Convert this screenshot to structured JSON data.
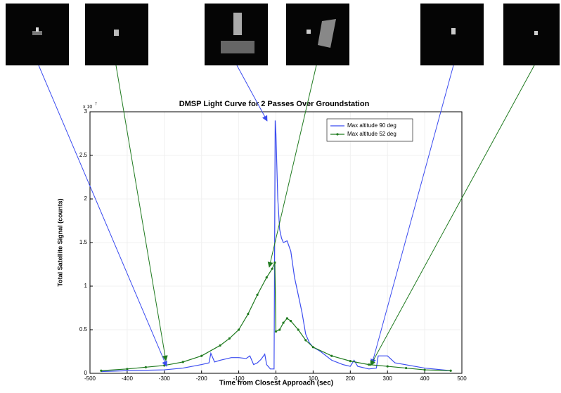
{
  "chart_data": {
    "type": "line",
    "title": "DMSP Light Curve for 2 Passes Over Groundstation",
    "x_label": "Time from Closest Approach (sec)",
    "y_label": "Total Satellite Signal (counts)",
    "y_multiplier": {
      "base": "x 10",
      "exponent": "7"
    },
    "xlim": [
      -500,
      500
    ],
    "xticks": [
      -500,
      -400,
      -300,
      -200,
      -100,
      0,
      100,
      200,
      300,
      400,
      500
    ],
    "ylim": [
      0,
      3
    ],
    "yticks": [
      0,
      0.5,
      1,
      1.5,
      2,
      2.5,
      3
    ],
    "grid": true,
    "legend": "upper right",
    "series": [
      {
        "name": "Max altitude 90 deg",
        "color": "#3b4cf0",
        "marker": false,
        "x": [
          -470,
          -400,
          -300,
          -250,
          -200,
          -180,
          -175,
          -165,
          -150,
          -120,
          -100,
          -80,
          -70,
          -60,
          -50,
          -40,
          -30,
          -25,
          -15,
          -5,
          -2,
          0,
          5,
          10,
          15,
          20,
          30,
          40,
          50,
          60,
          70,
          80,
          90,
          100,
          120,
          150,
          180,
          200,
          210,
          220,
          250,
          270,
          275,
          300,
          320,
          400,
          470
        ],
        "values": [
          0.02,
          0.03,
          0.04,
          0.06,
          0.1,
          0.12,
          0.23,
          0.13,
          0.15,
          0.18,
          0.18,
          0.17,
          0.2,
          0.1,
          0.12,
          0.16,
          0.22,
          0.1,
          0.05,
          0.05,
          2.9,
          2.75,
          2.0,
          1.65,
          1.55,
          1.5,
          1.52,
          1.4,
          1.1,
          0.9,
          0.7,
          0.45,
          0.35,
          0.3,
          0.25,
          0.15,
          0.1,
          0.08,
          0.15,
          0.08,
          0.05,
          0.06,
          0.2,
          0.2,
          0.12,
          0.06,
          0.03
        ]
      },
      {
        "name": "Max altitude 52 deg",
        "color": "#1f7a1f",
        "marker": true,
        "x": [
          -470,
          -400,
          -350,
          -300,
          -250,
          -200,
          -150,
          -125,
          -100,
          -75,
          -50,
          -25,
          -10,
          -3,
          0,
          10,
          20,
          30,
          40,
          60,
          80,
          100,
          150,
          200,
          250,
          300,
          350,
          400,
          470
        ],
        "values": [
          0.03,
          0.05,
          0.07,
          0.09,
          0.13,
          0.2,
          0.32,
          0.4,
          0.5,
          0.68,
          0.9,
          1.1,
          1.2,
          1.27,
          0.48,
          0.5,
          0.58,
          0.63,
          0.6,
          0.5,
          0.38,
          0.3,
          0.2,
          0.14,
          0.1,
          0.08,
          0.06,
          0.04,
          0.03
        ]
      }
    ]
  }
}
